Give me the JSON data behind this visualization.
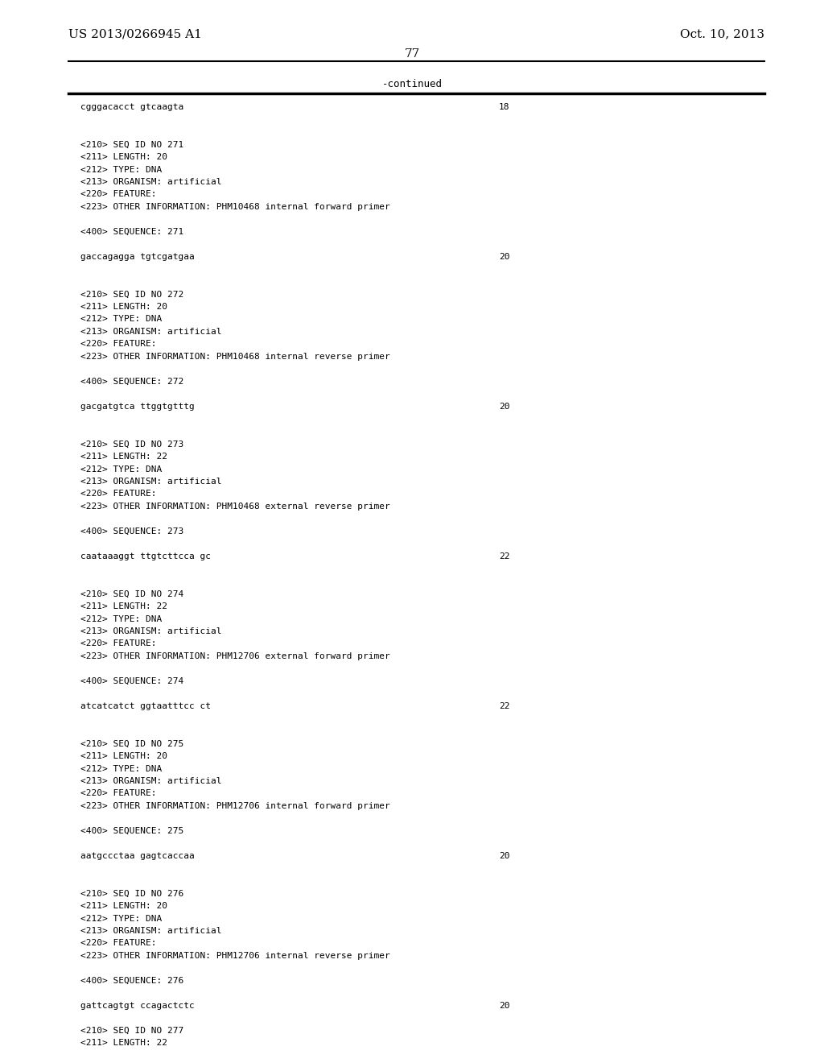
{
  "background_color": "#ffffff",
  "header_left": "US 2013/0266945 A1",
  "header_right": "Oct. 10, 2013",
  "page_number": "77",
  "continued_label": "-continued",
  "content_lines": [
    {
      "text": "cgggacacct gtcaagta",
      "number": "18"
    },
    {
      "text": ""
    },
    {
      "text": ""
    },
    {
      "text": "<210> SEQ ID NO 271"
    },
    {
      "text": "<211> LENGTH: 20"
    },
    {
      "text": "<212> TYPE: DNA"
    },
    {
      "text": "<213> ORGANISM: artificial"
    },
    {
      "text": "<220> FEATURE:"
    },
    {
      "text": "<223> OTHER INFORMATION: PHM10468 internal forward primer"
    },
    {
      "text": ""
    },
    {
      "text": "<400> SEQUENCE: 271"
    },
    {
      "text": ""
    },
    {
      "text": "gaccagagga tgtcgatgaa",
      "number": "20"
    },
    {
      "text": ""
    },
    {
      "text": ""
    },
    {
      "text": "<210> SEQ ID NO 272"
    },
    {
      "text": "<211> LENGTH: 20"
    },
    {
      "text": "<212> TYPE: DNA"
    },
    {
      "text": "<213> ORGANISM: artificial"
    },
    {
      "text": "<220> FEATURE:"
    },
    {
      "text": "<223> OTHER INFORMATION: PHM10468 internal reverse primer"
    },
    {
      "text": ""
    },
    {
      "text": "<400> SEQUENCE: 272"
    },
    {
      "text": ""
    },
    {
      "text": "gacgatgtca ttggtgtttg",
      "number": "20"
    },
    {
      "text": ""
    },
    {
      "text": ""
    },
    {
      "text": "<210> SEQ ID NO 273"
    },
    {
      "text": "<211> LENGTH: 22"
    },
    {
      "text": "<212> TYPE: DNA"
    },
    {
      "text": "<213> ORGANISM: artificial"
    },
    {
      "text": "<220> FEATURE:"
    },
    {
      "text": "<223> OTHER INFORMATION: PHM10468 external reverse primer"
    },
    {
      "text": ""
    },
    {
      "text": "<400> SEQUENCE: 273"
    },
    {
      "text": ""
    },
    {
      "text": "caataaaggt ttgtcttcca gc",
      "number": "22"
    },
    {
      "text": ""
    },
    {
      "text": ""
    },
    {
      "text": "<210> SEQ ID NO 274"
    },
    {
      "text": "<211> LENGTH: 22"
    },
    {
      "text": "<212> TYPE: DNA"
    },
    {
      "text": "<213> ORGANISM: artificial"
    },
    {
      "text": "<220> FEATURE:"
    },
    {
      "text": "<223> OTHER INFORMATION: PHM12706 external forward primer"
    },
    {
      "text": ""
    },
    {
      "text": "<400> SEQUENCE: 274"
    },
    {
      "text": ""
    },
    {
      "text": "atcatcatct ggtaatttcc ct",
      "number": "22"
    },
    {
      "text": ""
    },
    {
      "text": ""
    },
    {
      "text": "<210> SEQ ID NO 275"
    },
    {
      "text": "<211> LENGTH: 20"
    },
    {
      "text": "<212> TYPE: DNA"
    },
    {
      "text": "<213> ORGANISM: artificial"
    },
    {
      "text": "<220> FEATURE:"
    },
    {
      "text": "<223> OTHER INFORMATION: PHM12706 internal forward primer"
    },
    {
      "text": ""
    },
    {
      "text": "<400> SEQUENCE: 275"
    },
    {
      "text": ""
    },
    {
      "text": "aatgccctaa gagtcaccaa",
      "number": "20"
    },
    {
      "text": ""
    },
    {
      "text": ""
    },
    {
      "text": "<210> SEQ ID NO 276"
    },
    {
      "text": "<211> LENGTH: 20"
    },
    {
      "text": "<212> TYPE: DNA"
    },
    {
      "text": "<213> ORGANISM: artificial"
    },
    {
      "text": "<220> FEATURE:"
    },
    {
      "text": "<223> OTHER INFORMATION: PHM12706 internal reverse primer"
    },
    {
      "text": ""
    },
    {
      "text": "<400> SEQUENCE: 276"
    },
    {
      "text": ""
    },
    {
      "text": "gattcagtgt ccagactctc",
      "number": "20"
    },
    {
      "text": ""
    },
    {
      "text": "<210> SEQ ID NO 277"
    },
    {
      "text": "<211> LENGTH: 22"
    }
  ]
}
